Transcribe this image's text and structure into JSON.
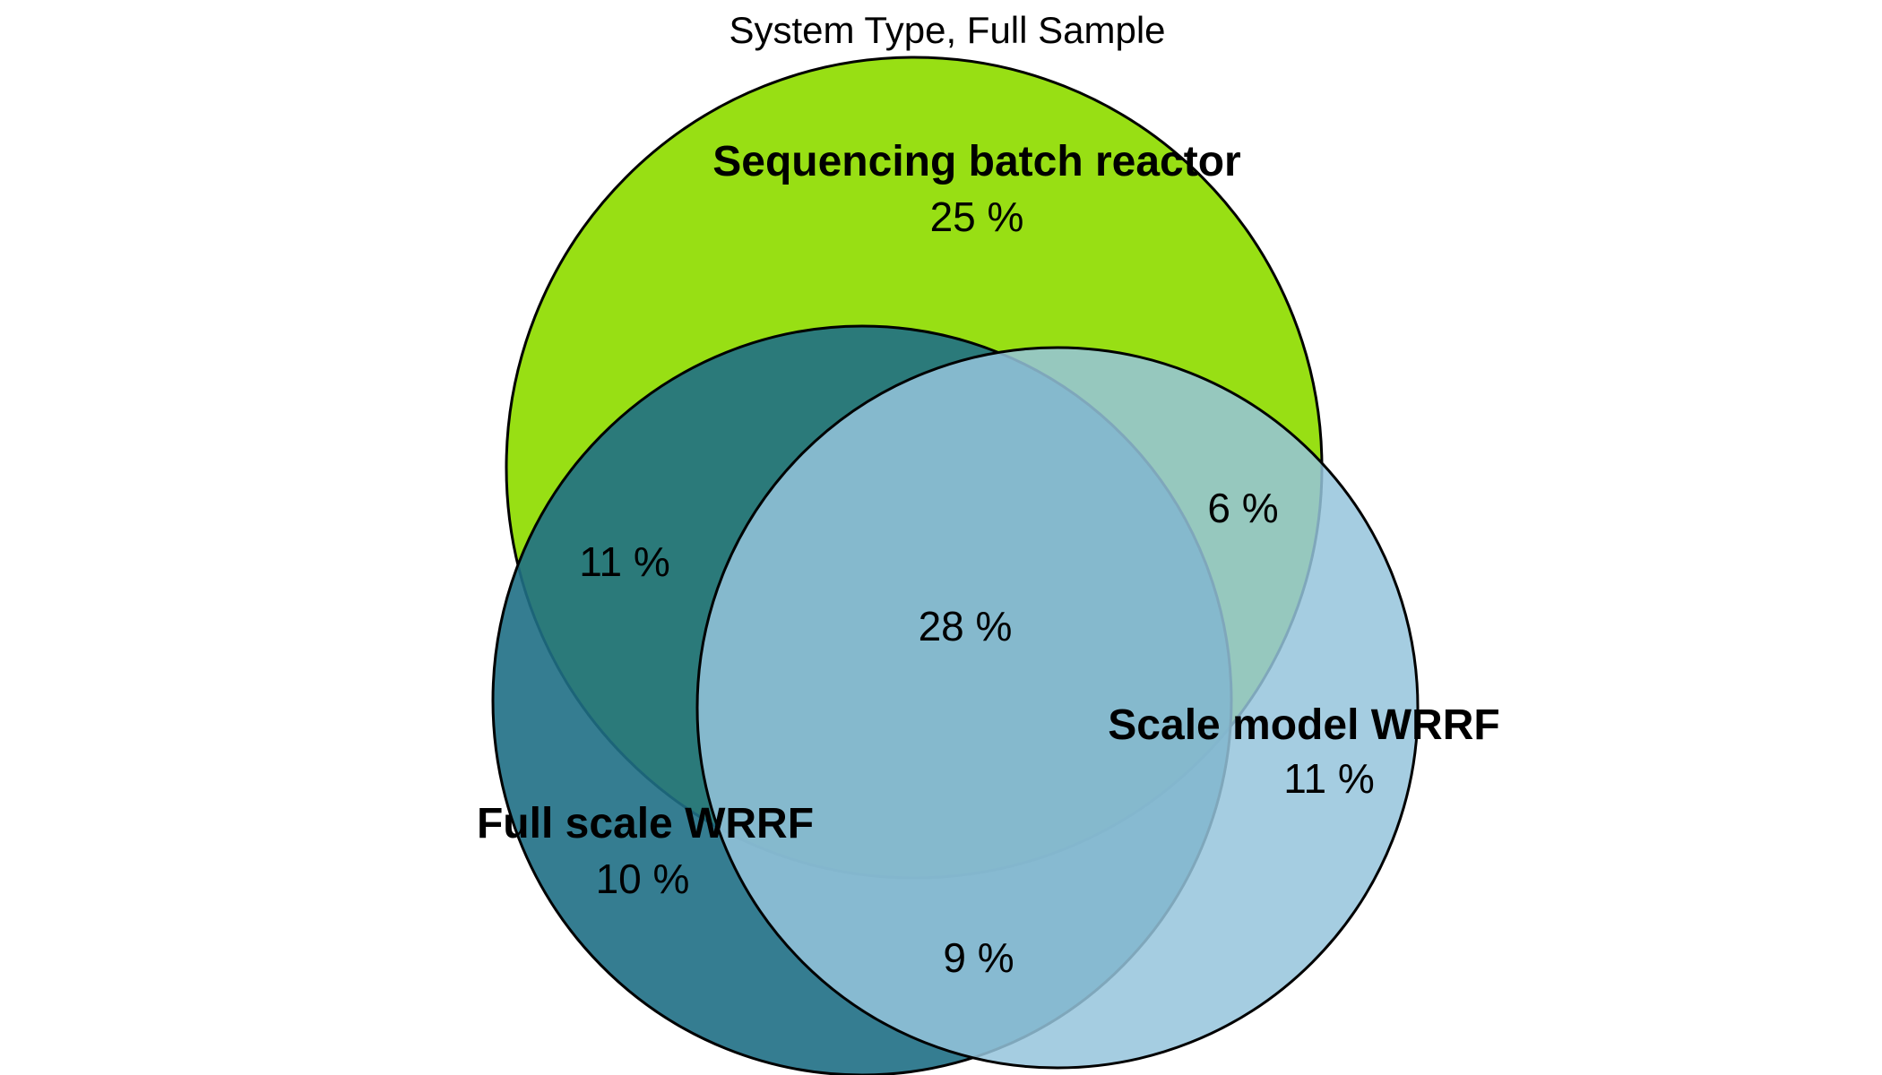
{
  "title": "System Type, Full Sample",
  "sets": [
    {
      "id": "sbr",
      "name": "Sequencing batch reactor",
      "color": "#8fdc00"
    },
    {
      "id": "full",
      "name": "Full scale WRRF",
      "color": "#1f6f85"
    },
    {
      "id": "scale",
      "name": "Scale model WRRF",
      "color": "#95c4dc"
    }
  ],
  "regions": {
    "sbr_only": "25 %",
    "full_only": "10 %",
    "scale_only": "11 %",
    "sbr_full": "11 %",
    "sbr_scale": "6 %",
    "full_scale": "9 %",
    "all_three": "28 %"
  },
  "colors": {
    "sbr": "#8fdc00",
    "full": "#1f6f85",
    "scale": "#95c4dc",
    "outline": "#000000"
  }
}
